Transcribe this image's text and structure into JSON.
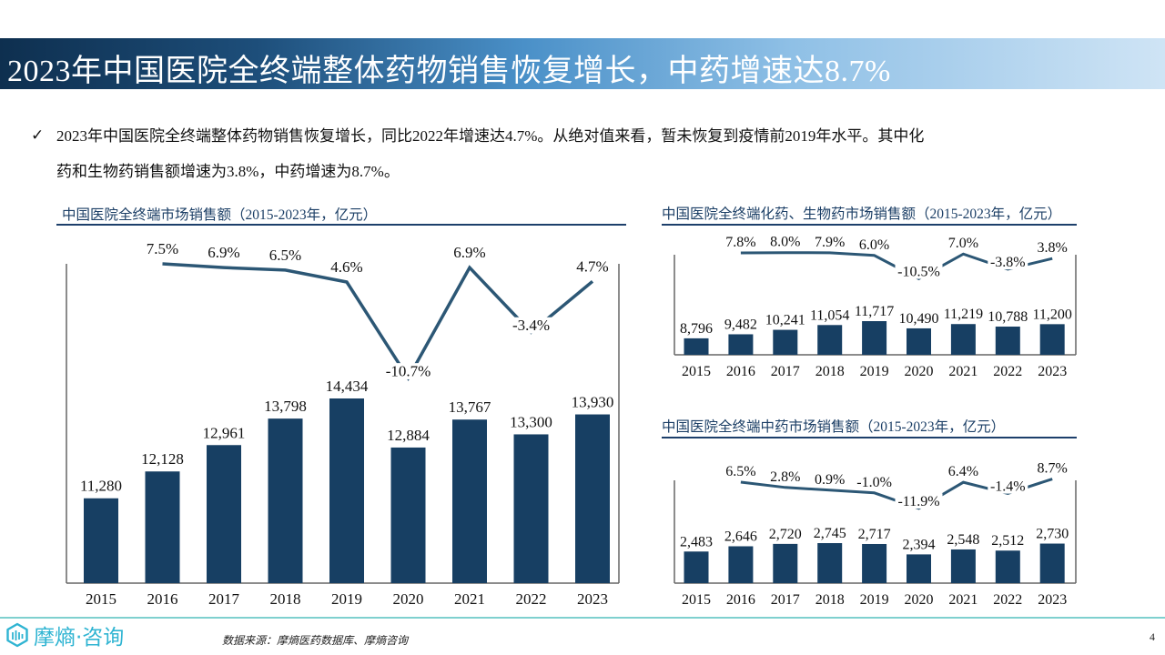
{
  "header": {
    "title": "2023年中国医院全终端整体药物销售恢复增长，中药增速达8.7%"
  },
  "summary": {
    "check_icon": "✓",
    "line1": "2023年中国医院全终端整体药物销售恢复增长，同比2022年增速达4.7%。从绝对值来看，暂未恢复到疫情前2019年水平。其中化",
    "line2": "药和生物药销售额增速为3.8%，中药增速为8.7%。"
  },
  "colors": {
    "bar": "#173f63",
    "line": "#2c5775",
    "title_underline": "#1d3f6b",
    "logo": "#2fb4d2",
    "footer_line": "#7fd0cf"
  },
  "chart_data": [
    {
      "type": "bar",
      "title": "中国医院全终端市场销售额（2015-2023年，亿元）",
      "categories": [
        "2015",
        "2016",
        "2017",
        "2018",
        "2019",
        "2020",
        "2021",
        "2022",
        "2023"
      ],
      "series": [
        {
          "name": "销售额",
          "type": "bar",
          "values": [
            11280,
            12128,
            12961,
            13798,
            14434,
            12884,
            13767,
            13300,
            13930
          ],
          "labels": [
            "11,280",
            "12,128",
            "12,961",
            "13,798",
            "14,434",
            "12,884",
            "13,767",
            "13,300",
            "13,930"
          ]
        },
        {
          "name": "增速",
          "type": "line",
          "values": [
            null,
            7.5,
            6.9,
            6.5,
            4.6,
            -10.7,
            6.9,
            -3.4,
            4.7
          ],
          "labels": [
            "",
            "7.5%",
            "6.9%",
            "6.5%",
            "4.6%",
            "-10.7%",
            "6.9%",
            "-3.4%",
            "4.7%"
          ]
        }
      ],
      "xlabel": "",
      "ylabel": "",
      "grid": false,
      "legend": "none"
    },
    {
      "type": "bar",
      "title": "中国医院全终端化药、生物药市场销售额（2015-2023年，亿元）",
      "categories": [
        "2015",
        "2016",
        "2017",
        "2018",
        "2019",
        "2020",
        "2021",
        "2022",
        "2023"
      ],
      "series": [
        {
          "name": "销售额",
          "type": "bar",
          "values": [
            8796,
            9482,
            10241,
            11054,
            11717,
            10490,
            11219,
            10788,
            11200
          ],
          "labels": [
            "8,796",
            "9,482",
            "10,241",
            "11,054",
            "11,717",
            "10,490",
            "11,219",
            "10,788",
            "11,200"
          ]
        },
        {
          "name": "增速",
          "type": "line",
          "values": [
            null,
            7.8,
            8.0,
            7.9,
            6.0,
            -10.5,
            7.0,
            -3.8,
            3.8
          ],
          "labels": [
            "",
            "7.8%",
            "8.0%",
            "7.9%",
            "6.0%",
            "-10.5%",
            "7.0%",
            "-3.8%",
            "3.8%"
          ]
        }
      ],
      "xlabel": "",
      "ylabel": "",
      "grid": false,
      "legend": "none"
    },
    {
      "type": "bar",
      "title": "中国医院全终端中药市场销售额（2015-2023年，亿元）",
      "categories": [
        "2015",
        "2016",
        "2017",
        "2018",
        "2019",
        "2020",
        "2021",
        "2022",
        "2023"
      ],
      "series": [
        {
          "name": "销售额",
          "type": "bar",
          "values": [
            2483,
            2646,
            2720,
            2745,
            2717,
            2394,
            2548,
            2512,
            2730
          ],
          "labels": [
            "2,483",
            "2,646",
            "2,720",
            "2,745",
            "2,717",
            "2,394",
            "2,548",
            "2,512",
            "2,730"
          ]
        },
        {
          "name": "增速",
          "type": "line",
          "values": [
            null,
            6.5,
            2.8,
            0.9,
            -1.0,
            -11.9,
            6.4,
            -1.4,
            8.7
          ],
          "labels": [
            "",
            "6.5%",
            "2.8%",
            "0.9%",
            "-1.0%",
            "-11.9%",
            "6.4%",
            "-1.4%",
            "8.7%"
          ]
        }
      ],
      "xlabel": "",
      "ylabel": "",
      "grid": false,
      "legend": "none"
    }
  ],
  "footer": {
    "logo_icon": "moshang-logo-icon",
    "logo_text": "摩熵·咨询",
    "source": "数据来源：摩熵医药数据库、摩熵咨询",
    "page_number": "4"
  }
}
